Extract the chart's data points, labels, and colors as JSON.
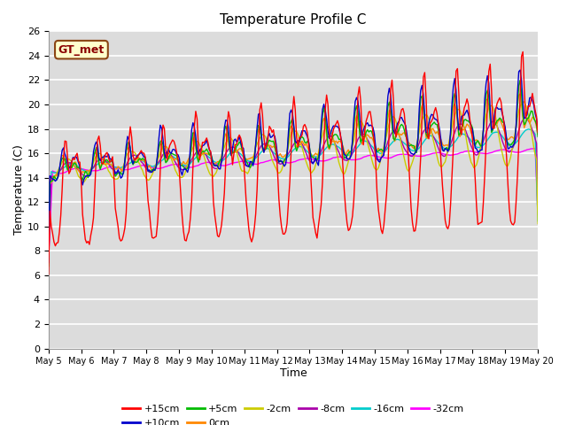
{
  "title": "Temperature Profile C",
  "xlabel": "Time",
  "ylabel": "Temperature (C)",
  "ylim": [
    0,
    26
  ],
  "yticks": [
    0,
    2,
    4,
    6,
    8,
    10,
    12,
    14,
    16,
    18,
    20,
    22,
    24,
    26
  ],
  "series": {
    "+15cm": {
      "color": "#FF0000",
      "linewidth": 1.0
    },
    "+10cm": {
      "color": "#0000CC",
      "linewidth": 1.0
    },
    "+5cm": {
      "color": "#00BB00",
      "linewidth": 1.0
    },
    "0cm": {
      "color": "#FF8800",
      "linewidth": 1.0
    },
    "-2cm": {
      "color": "#CCCC00",
      "linewidth": 1.0
    },
    "-8cm": {
      "color": "#AA00AA",
      "linewidth": 1.0
    },
    "-16cm": {
      "color": "#00CCCC",
      "linewidth": 1.0
    },
    "-32cm": {
      "color": "#FF00FF",
      "linewidth": 1.0
    }
  },
  "gt_met_box": {
    "text": "GT_met",
    "fontsize": 9,
    "facecolor": "#FFFFCC",
    "edgecolor": "#8B4513",
    "textcolor": "#8B0000"
  },
  "plot_bg_color": "#DCDCDC",
  "grid_color": "#FFFFFF",
  "title_fontsize": 11
}
